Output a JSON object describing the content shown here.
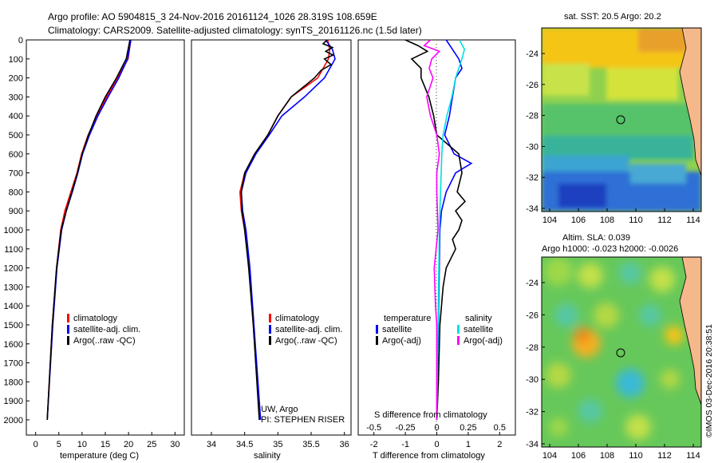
{
  "header": {
    "line1": "Argo profile: AO 5904815_3 24-Nov-2016 20161124_1026 28.319S 108.659E",
    "line2": "Climatology: CARS2009. Satellite-adjusted climatology: synTS_20161126.nc (1.5d later)"
  },
  "chart_data": [
    {
      "type": "line",
      "panel": "temperature",
      "xlabel": "temperature (deg C)",
      "xlim": [
        -2,
        32
      ],
      "xticks": [
        0,
        5,
        10,
        15,
        20,
        25,
        30
      ],
      "ylim": [
        2080,
        0
      ],
      "yticks": [
        0,
        100,
        200,
        300,
        400,
        500,
        600,
        700,
        800,
        900,
        1000,
        1100,
        1200,
        1300,
        1400,
        1500,
        1600,
        1700,
        1800,
        1900,
        2000
      ],
      "legend": [
        "climatology",
        "satellite-adj. clim.",
        "Argo(..raw -QC)"
      ],
      "series": [
        {
          "name": "climatology",
          "color": "#ff0000",
          "depth": [
            0,
            100,
            200,
            300,
            400,
            500,
            600,
            700,
            800,
            900,
            1000,
            1200,
            1500,
            2000
          ],
          "values": [
            20.5,
            19.9,
            17.6,
            15.3,
            13.2,
            11.3,
            9.9,
            8.9,
            7.6,
            6.3,
            5.4,
            4.5,
            3.6,
            2.5
          ]
        },
        {
          "name": "satellite-adj. clim.",
          "color": "#0000ff",
          "depth": [
            0,
            100,
            200,
            300,
            400,
            500,
            600,
            700,
            800,
            900,
            1000,
            1200,
            1500,
            2000
          ],
          "values": [
            20.5,
            19.8,
            17.9,
            15.6,
            13.4,
            11.6,
            10.1,
            9.1,
            7.9,
            6.6,
            5.6,
            4.6,
            3.7,
            2.5
          ]
        },
        {
          "name": "Argo(..raw -QC)",
          "color": "#000000",
          "depth": [
            0,
            100,
            200,
            300,
            400,
            500,
            600,
            700,
            800,
            900,
            1000,
            1200,
            1500,
            2000
          ],
          "values": [
            20.3,
            19.5,
            17.4,
            15.0,
            13.0,
            11.4,
            10.0,
            9.0,
            7.8,
            6.6,
            5.5,
            4.5,
            3.6,
            2.5
          ]
        }
      ]
    },
    {
      "type": "line",
      "panel": "salinity",
      "xlabel": "salinity",
      "xlim": [
        33.7,
        36.1
      ],
      "xticks": [
        34,
        34.5,
        35,
        35.5,
        36
      ],
      "ylim": [
        2080,
        0
      ],
      "legend": [
        "climatology",
        "satellite-adj. clim.",
        "Argo(..raw -QC)"
      ],
      "annotation": [
        "UW, Argo",
        "PI: STEPHEN RISER"
      ],
      "series": [
        {
          "name": "climatology",
          "color": "#ff0000",
          "depth": [
            0,
            50,
            100,
            200,
            300,
            400,
            500,
            600,
            700,
            800,
            900,
            1000,
            1200,
            1500,
            2000
          ],
          "values": [
            35.75,
            35.78,
            35.76,
            35.6,
            35.2,
            35.0,
            34.85,
            34.65,
            34.5,
            34.43,
            34.45,
            34.5,
            34.57,
            34.63,
            34.73
          ]
        },
        {
          "name": "satellite-adj. clim.",
          "color": "#0000ff",
          "depth": [
            0,
            50,
            100,
            200,
            300,
            400,
            500,
            600,
            700,
            800,
            900,
            1000,
            1200,
            1500,
            2000
          ],
          "values": [
            35.72,
            35.82,
            35.86,
            35.7,
            35.4,
            35.06,
            34.87,
            34.67,
            34.52,
            34.45,
            34.47,
            34.52,
            34.58,
            34.64,
            34.74
          ]
        },
        {
          "name": "Argo(..raw -QC)",
          "color": "#000000",
          "depth": [
            0,
            20,
            40,
            60,
            80,
            100,
            130,
            160,
            200,
            300,
            400,
            500,
            600,
            700,
            800,
            900,
            1000,
            1200,
            1500,
            2000
          ],
          "values": [
            35.74,
            35.68,
            35.82,
            35.72,
            35.83,
            35.7,
            35.8,
            35.65,
            35.55,
            35.2,
            35.0,
            34.85,
            34.65,
            34.5,
            34.45,
            34.46,
            34.5,
            34.56,
            34.63,
            34.72
          ]
        }
      ]
    },
    {
      "type": "line",
      "panel": "difference",
      "xlabel": "T difference from climatology",
      "xlabel2": "S difference from climatology",
      "xlim": [
        -2.5,
        2.5
      ],
      "xticks_T": [
        -2,
        -1,
        0,
        1,
        2
      ],
      "xticks_S": [
        "-0.5",
        "-0.25",
        "0",
        "0.25",
        "0.5"
      ],
      "legend": {
        "temperature_header": "temperature",
        "salinity_header": "salinity",
        "t_sat": "satellite",
        "t_argo": "Argo(-adj)",
        "s_sat": "satellite",
        "s_argo": "Argo(-adj)"
      },
      "series": [
        {
          "name": "T satellite",
          "color": "#0000ff",
          "depth": [
            0,
            50,
            100,
            150,
            200,
            300,
            400,
            500,
            600,
            650,
            700,
            800,
            900,
            1000,
            1500,
            2000
          ],
          "values": [
            0.3,
            0.5,
            0.7,
            0.8,
            0.6,
            0.5,
            0.4,
            0.25,
            0.55,
            1.1,
            0.6,
            0.3,
            0.15,
            0.1,
            0.05,
            0.0
          ]
        },
        {
          "name": "T Argo",
          "color": "#000000",
          "depth": [
            0,
            30,
            60,
            100,
            150,
            200,
            300,
            400,
            500,
            600,
            700,
            800,
            850,
            900,
            950,
            1000,
            1050,
            1100,
            1200,
            1300,
            1500,
            1800,
            2000
          ],
          "values": [
            -1.0,
            -0.6,
            -0.3,
            -0.8,
            -0.5,
            -0.5,
            -0.25,
            -0.1,
            0.0,
            0.7,
            0.8,
            0.65,
            0.9,
            0.6,
            0.8,
            0.7,
            0.5,
            0.6,
            0.3,
            0.2,
            0.1,
            0.05,
            0.0
          ]
        },
        {
          "name": "S satellite",
          "color": "#00e0e0",
          "depth": [
            0,
            50,
            100,
            200,
            300,
            400,
            500,
            600,
            800,
            1000,
            1500,
            2000
          ],
          "values": [
            0.18,
            0.22,
            0.2,
            0.15,
            0.12,
            0.08,
            0.05,
            0.04,
            0.03,
            0.02,
            0.01,
            0.0
          ]
        },
        {
          "name": "S Argo",
          "color": "#ff00ff",
          "depth": [
            0,
            30,
            60,
            100,
            150,
            200,
            300,
            400,
            500,
            600,
            700,
            800,
            1000,
            1200,
            1400,
            1500,
            1700,
            2000
          ],
          "values": [
            -0.05,
            -0.1,
            0.02,
            -0.04,
            -0.06,
            -0.03,
            -0.08,
            -0.05,
            0.0,
            0.02,
            0.0,
            0.0,
            0.01,
            -0.02,
            -0.01,
            0.0,
            0.0,
            0.0
          ]
        }
      ]
    },
    {
      "type": "heatmap",
      "panel": "sst_map",
      "title": "sat. SST: 20.5 Argo: 20.2",
      "xticks": [
        "104",
        "106",
        "108",
        "110",
        "112",
        "114"
      ],
      "yticks": [
        "-24",
        "-26",
        "-28",
        "-30",
        "-32",
        "-34"
      ],
      "marker": {
        "lon": 108.659,
        "lat": -28.319
      }
    },
    {
      "type": "heatmap",
      "panel": "sla_map",
      "title": "Altim. SLA: 0.039",
      "subtitle": "Argo h1000: -0.023 h2000: -0.0026",
      "xticks": [
        "104",
        "106",
        "108",
        "110",
        "112",
        "114"
      ],
      "yticks": [
        "-24",
        "-26",
        "-28",
        "-30",
        "-32",
        "-34"
      ],
      "marker": {
        "lon": 108.659,
        "lat": -28.319
      }
    }
  ],
  "footer": {
    "credit": "©IMOS 03-Dec-2016 20:38:51"
  }
}
